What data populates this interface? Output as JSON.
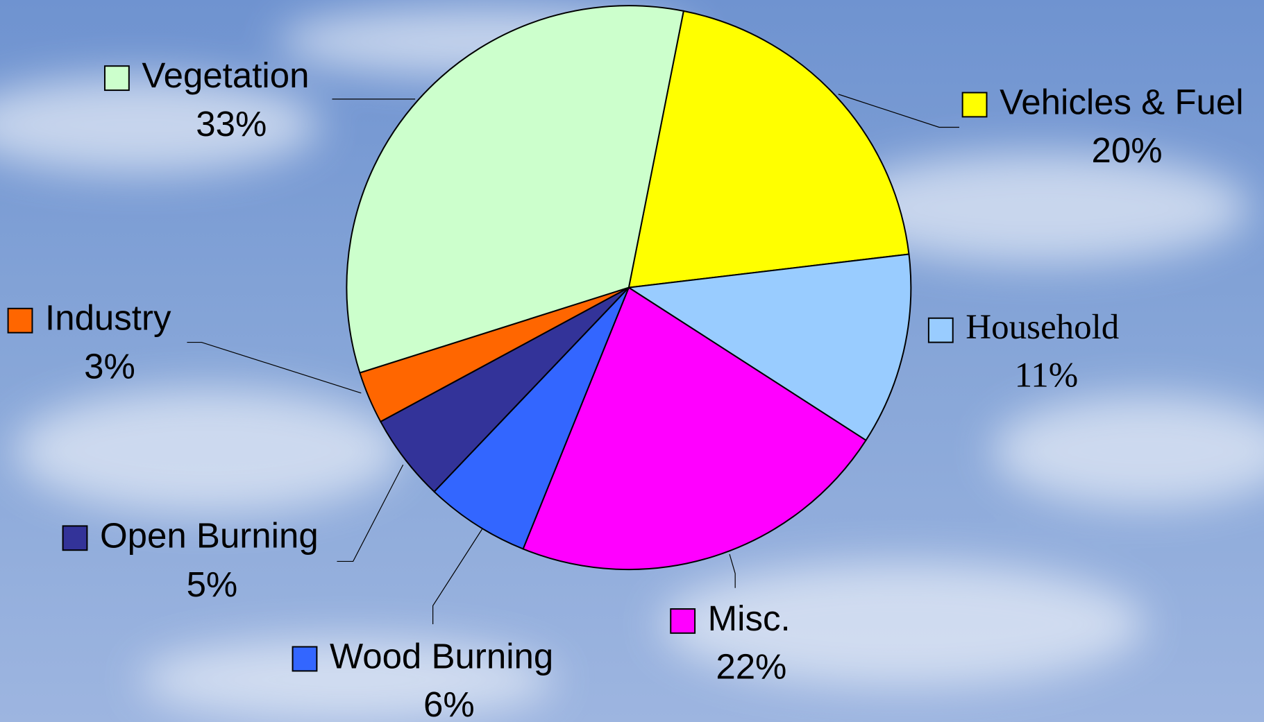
{
  "chart_data": {
    "type": "pie",
    "categories": [
      "Vehicles & Fuel",
      "Household",
      "Misc.",
      "Wood Burning",
      "Open Burning",
      "Industry",
      "Vegetation"
    ],
    "values": [
      20,
      11,
      22,
      6,
      5,
      3,
      33
    ],
    "value_labels": [
      "20%",
      "11%",
      "22%",
      "6%",
      "5%",
      "3%",
      "33%"
    ],
    "colors": [
      "#ffff00",
      "#99ccff",
      "#ff00ff",
      "#3366ff",
      "#333399",
      "#ff6600",
      "#ccffcc"
    ]
  }
}
